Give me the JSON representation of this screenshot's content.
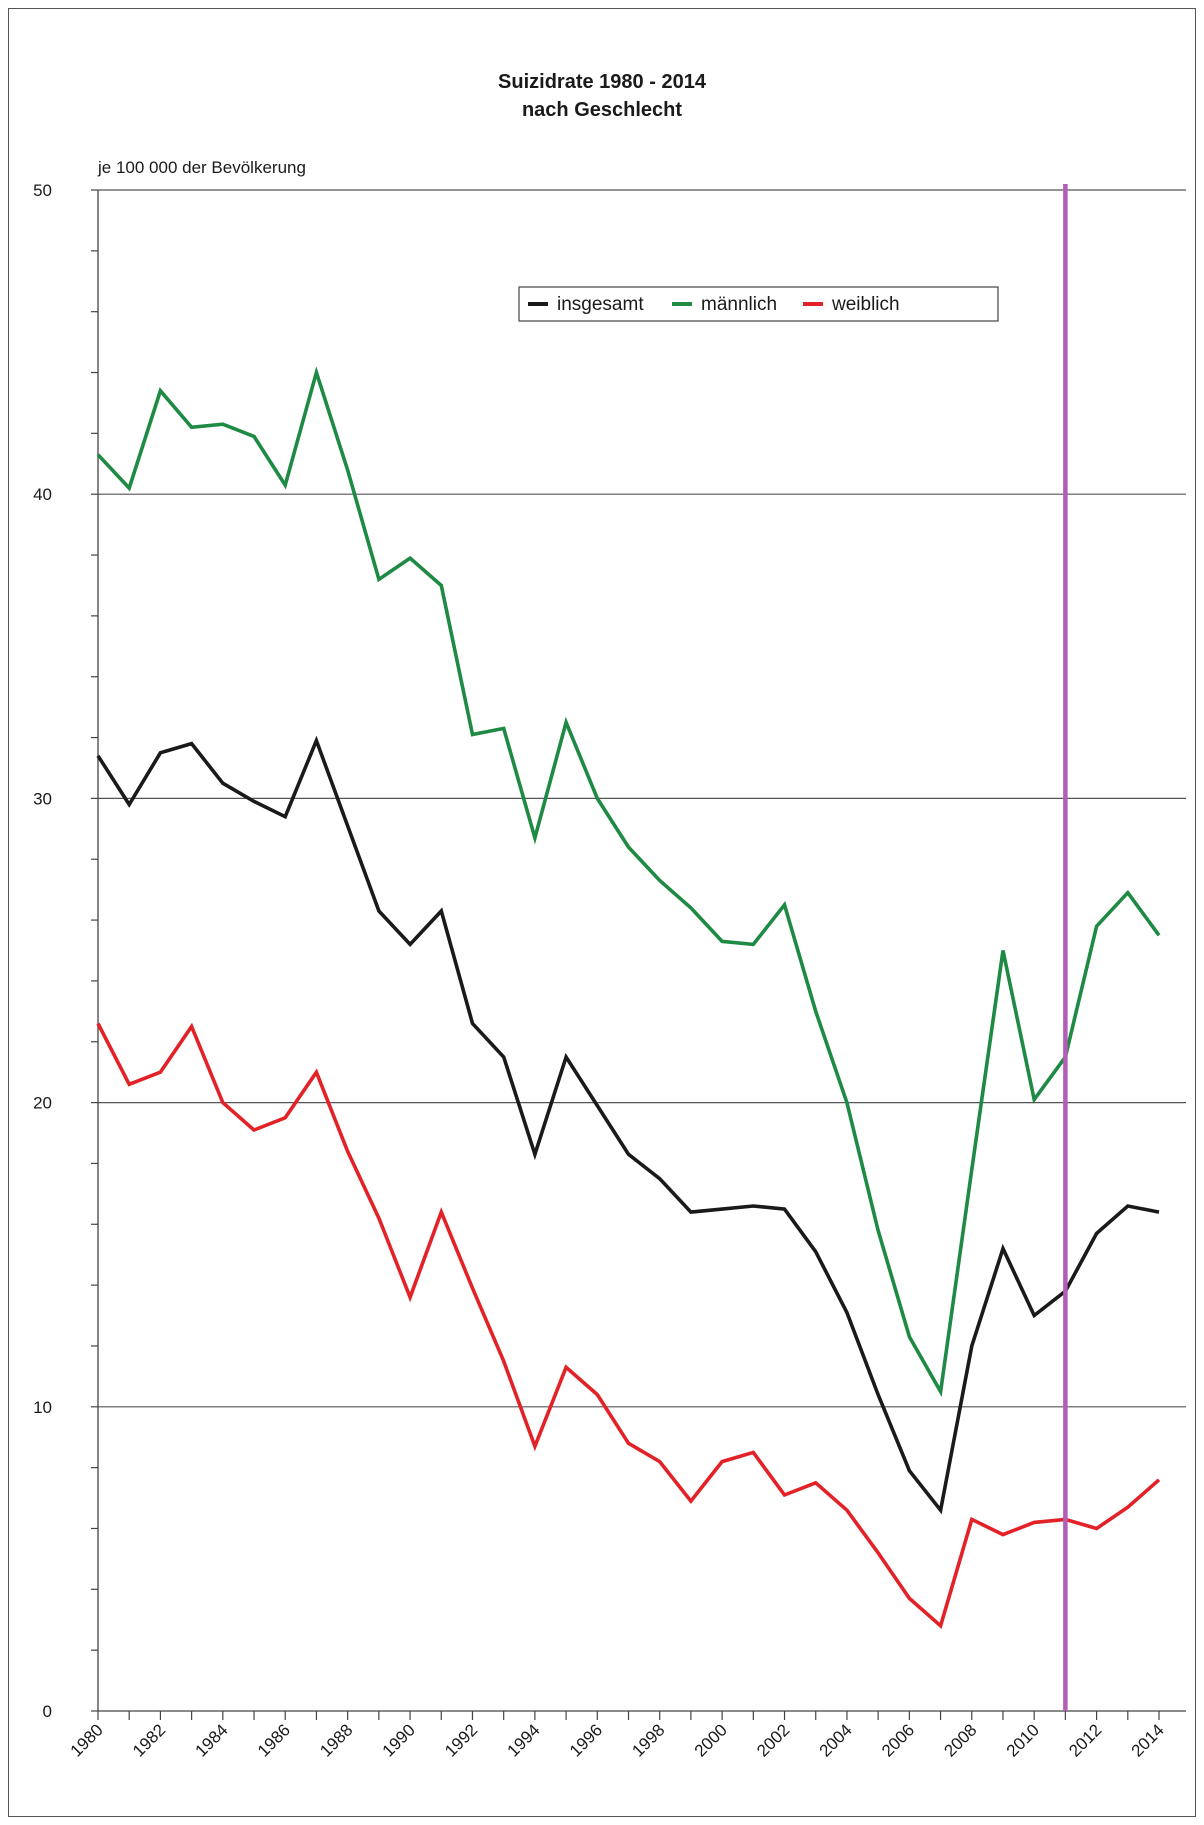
{
  "chart_data": {
    "type": "line",
    "title_line1": "Suizidrate 1980 - 2014",
    "title_line2": "nach Geschlecht",
    "ylabel": "je 100 000 der Bevölkerung",
    "xlabel": "",
    "ylim": [
      0,
      50
    ],
    "y_ticks": [
      0,
      10,
      20,
      30,
      40,
      50
    ],
    "x": [
      1980,
      1981,
      1982,
      1983,
      1984,
      1985,
      1986,
      1987,
      1988,
      1989,
      1990,
      1991,
      1992,
      1993,
      1994,
      1995,
      1996,
      1997,
      1998,
      1999,
      2000,
      2001,
      2002,
      2003,
      2004,
      2005,
      2006,
      2007,
      2008,
      2009,
      2010,
      2011,
      2012,
      2013,
      2014
    ],
    "x_tick_labels": [
      "1980",
      "1982",
      "1984",
      "1986",
      "1988",
      "1990",
      "1992",
      "1994",
      "1996",
      "1998",
      "2000",
      "2002",
      "2004",
      "2006",
      "2008",
      "2010",
      "2012",
      "2014"
    ],
    "grid": "horizontal",
    "legend_position": "top-center",
    "marker_line_x": 2011,
    "marker_line_color": "#b35db4",
    "series": [
      {
        "name": "insgesamt",
        "color": "#1a1a1a",
        "values": [
          31.4,
          29.8,
          31.5,
          31.8,
          30.5,
          29.9,
          29.4,
          31.9,
          29.1,
          26.3,
          25.2,
          26.3,
          22.6,
          21.5,
          18.3,
          21.5,
          19.9,
          18.3,
          17.5,
          16.4,
          16.5,
          16.6,
          16.5,
          15.1,
          13.1,
          10.4,
          7.9,
          6.6,
          12.0,
          15.2,
          13.0,
          13.8,
          15.7,
          16.6,
          16.4
        ]
      },
      {
        "name": "männlich",
        "color": "#1e8a44",
        "values": [
          41.3,
          40.2,
          43.4,
          42.2,
          42.3,
          41.9,
          40.3,
          44.0,
          40.8,
          37.2,
          37.9,
          37.0,
          32.1,
          32.3,
          28.7,
          32.5,
          30.0,
          28.4,
          27.3,
          26.4,
          25.3,
          25.2,
          26.5,
          23.0,
          20.0,
          15.8,
          12.3,
          10.5,
          17.8,
          25.0,
          20.1,
          21.5,
          25.8,
          26.9,
          25.5
        ]
      },
      {
        "name": "weiblich",
        "color": "#e32228",
        "values": [
          22.6,
          20.6,
          21.0,
          22.5,
          20.0,
          19.1,
          19.5,
          21.0,
          18.4,
          16.2,
          13.6,
          16.4,
          13.9,
          11.5,
          8.7,
          11.3,
          10.4,
          8.8,
          8.2,
          6.9,
          8.2,
          8.5,
          7.1,
          7.5,
          6.6,
          5.2,
          3.7,
          2.8,
          6.3,
          5.8,
          6.2,
          6.3,
          6.0,
          6.7,
          7.6
        ]
      }
    ]
  }
}
